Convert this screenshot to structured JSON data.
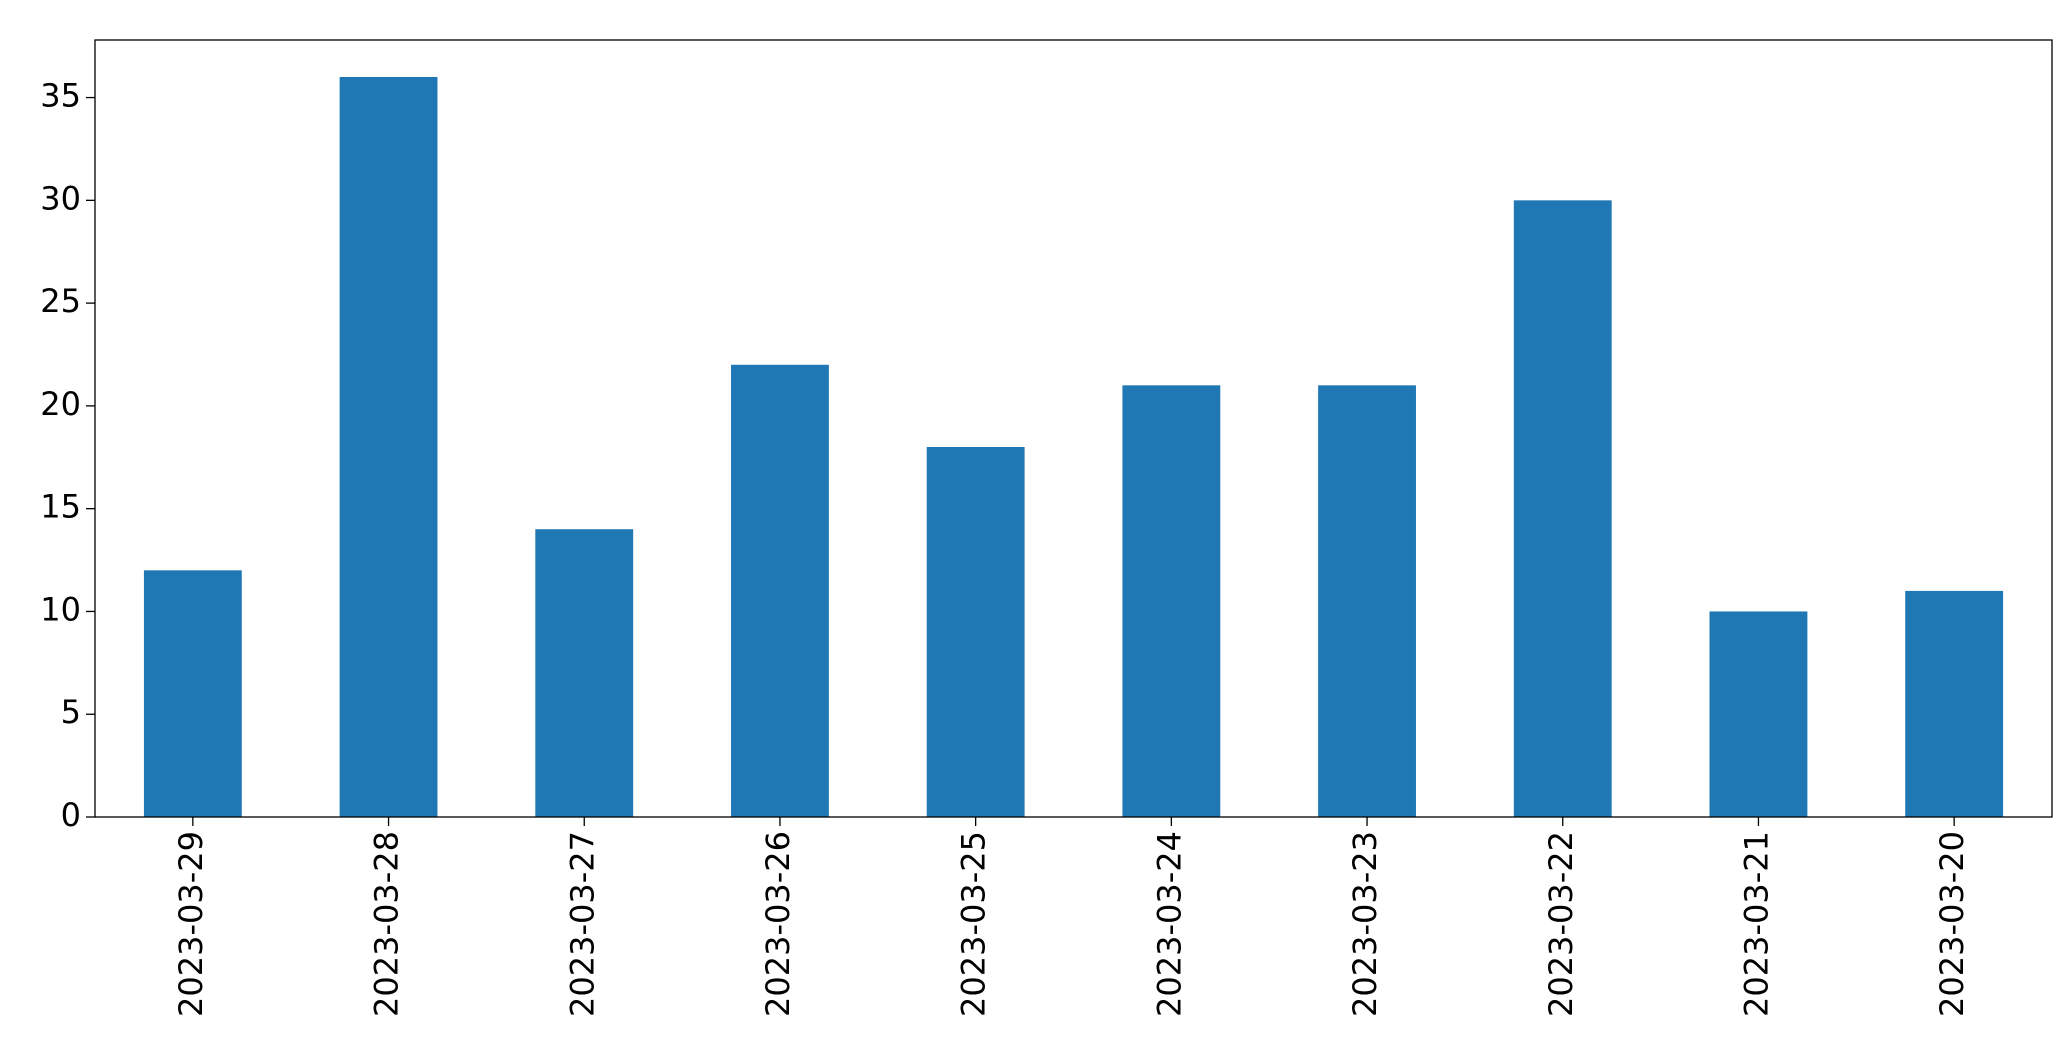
{
  "chart_data": {
    "type": "bar",
    "categories": [
      "2023-03-29",
      "2023-03-28",
      "2023-03-27",
      "2023-03-26",
      "2023-03-25",
      "2023-03-24",
      "2023-03-23",
      "2023-03-22",
      "2023-03-21",
      "2023-03-20"
    ],
    "values": [
      12,
      36,
      14,
      22,
      18,
      21,
      21,
      30,
      10,
      11
    ],
    "color": "#1f77b4",
    "ylim": [
      0,
      37.8
    ],
    "yticks": [
      0,
      5,
      10,
      15,
      20,
      25,
      30,
      35
    ],
    "grid": false
  }
}
